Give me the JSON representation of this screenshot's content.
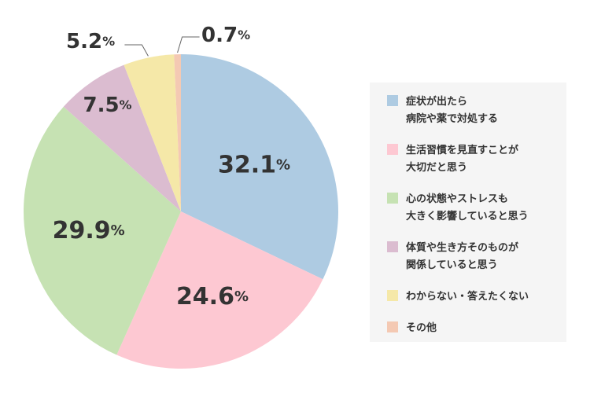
{
  "chart_data": {
    "type": "pie",
    "categories": [
      "症状が出たら\n病院や薬で対処する",
      "生活習慣を見直すことが\n大切だと思う",
      "心の状態やストレスも\n大きく影響していると思う",
      "体質や生き方そのものが\n関係していると思う",
      "わからない・答えたくない",
      "その他"
    ],
    "values": [
      32.1,
      24.6,
      29.9,
      7.5,
      5.2,
      0.7
    ],
    "labels": [
      "32.1",
      "24.6",
      "29.9",
      "7.5",
      "5.2",
      "0.7"
    ],
    "unit": "%",
    "colors": [
      "#aecbe2",
      "#fdc8d2",
      "#c6e2b3",
      "#dbbcd0",
      "#f5e8a8",
      "#f4c9b3"
    ],
    "legend_position": "right",
    "title": ""
  }
}
